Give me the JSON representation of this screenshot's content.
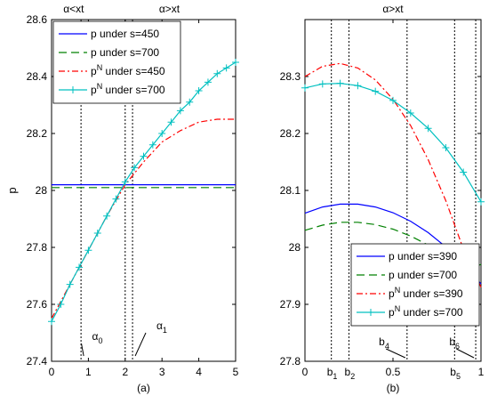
{
  "chart_data": [
    {
      "type": "line",
      "panel_label": "(a)",
      "top_labels": [
        "α<xt",
        "α>xt"
      ],
      "xlabel": "",
      "ylabel": "p",
      "xlim": [
        0,
        5
      ],
      "ylim": [
        27.4,
        28.6
      ],
      "x_ticks": [
        0,
        1,
        2,
        3,
        4,
        5
      ],
      "x_tick_labels": [
        "0",
        "1",
        "2",
        "3",
        "4",
        "5"
      ],
      "y_ticks": [
        27.4,
        27.6,
        27.8,
        28.0,
        28.2,
        28.4,
        28.6
      ],
      "y_tick_labels": [
        "27.4",
        "27.6",
        "27.8",
        "28",
        "28.2",
        "28.4",
        "28.6"
      ],
      "grid": false,
      "legend_position": "top-left",
      "series": [
        {
          "name": "p under s=450",
          "color": "#0000ff",
          "style": "solid",
          "marker": "none",
          "x": [
            0,
            5
          ],
          "y": [
            28.02,
            28.02
          ]
        },
        {
          "name": "p under s=700",
          "color": "#008000",
          "style": "dashed",
          "marker": "none",
          "x": [
            0,
            5
          ],
          "y": [
            28.01,
            28.01
          ]
        },
        {
          "name": "pN under s=450",
          "color": "#ff0000",
          "style": "dashdot",
          "marker": "none",
          "x": [
            0,
            0.5,
            1,
            1.5,
            2,
            2.5,
            3,
            3.5,
            4,
            4.5,
            5
          ],
          "y": [
            27.55,
            27.67,
            27.79,
            27.91,
            28.02,
            28.1,
            28.17,
            28.21,
            28.24,
            28.25,
            28.25
          ]
        },
        {
          "name": "pN under s=700",
          "color": "#00c0c0",
          "style": "solid",
          "marker": "plus",
          "x": [
            0,
            0.25,
            0.5,
            0.75,
            1,
            1.25,
            1.5,
            1.75,
            2,
            2.25,
            2.5,
            2.75,
            3,
            3.25,
            3.5,
            3.75,
            4,
            4.25,
            4.5,
            4.75,
            5
          ],
          "y": [
            27.54,
            27.6,
            27.67,
            27.73,
            27.79,
            27.85,
            27.91,
            27.97,
            28.03,
            28.08,
            28.12,
            28.16,
            28.2,
            28.24,
            28.28,
            28.31,
            28.35,
            28.38,
            28.41,
            28.43,
            28.45
          ]
        }
      ],
      "annotations": [
        {
          "label": "α0",
          "x": 0.8
        },
        {
          "label": "α1",
          "x": 2.2
        }
      ],
      "vertical_lines": [
        0.8,
        2.0,
        2.2
      ]
    },
    {
      "type": "line",
      "panel_label": "(b)",
      "top_labels": [
        "α>xt"
      ],
      "xlabel": "",
      "ylabel": "",
      "xlim": [
        0,
        1
      ],
      "ylim": [
        27.8,
        28.4
      ],
      "x_ticks": [
        0,
        0.5,
        1
      ],
      "x_tick_labels": [
        "0",
        "0.5",
        "1"
      ],
      "y_ticks": [
        27.8,
        27.9,
        28.0,
        28.1,
        28.2,
        28.3
      ],
      "y_tick_labels": [
        "27.8",
        "27.9",
        "28",
        "28.1",
        "28.2",
        "28.3"
      ],
      "grid": false,
      "legend_position": "bottom-right",
      "series": [
        {
          "name": "p under s=390",
          "color": "#0000ff",
          "style": "solid",
          "marker": "none",
          "x": [
            0,
            0.1,
            0.2,
            0.3,
            0.4,
            0.5,
            0.6,
            0.7,
            0.8,
            0.9,
            1.0
          ],
          "y": [
            28.06,
            28.071,
            28.076,
            28.076,
            28.071,
            28.061,
            28.046,
            28.026,
            28.001,
            27.971,
            27.936
          ]
        },
        {
          "name": "p under s=700",
          "color": "#008000",
          "style": "dashed",
          "marker": "none",
          "x": [
            0,
            0.1,
            0.2,
            0.3,
            0.4,
            0.5,
            0.6,
            0.7,
            0.8,
            0.9,
            1.0
          ],
          "y": [
            28.03,
            28.039,
            28.044,
            28.044,
            28.04,
            28.032,
            28.02,
            28.004,
            27.984,
            27.96,
            27.97
          ]
        },
        {
          "name": "pN under s=390",
          "color": "#ff0000",
          "style": "dashdot",
          "marker": "none",
          "x": [
            0,
            0.1,
            0.2,
            0.3,
            0.4,
            0.5,
            0.6,
            0.7,
            0.8,
            0.9,
            1.0
          ],
          "y": [
            28.3,
            28.318,
            28.323,
            28.315,
            28.294,
            28.26,
            28.214,
            28.154,
            28.082,
            27.997,
            27.93
          ]
        },
        {
          "name": "pN under s=700",
          "color": "#00c0c0",
          "style": "solid",
          "marker": "plus",
          "x": [
            0,
            0.1,
            0.2,
            0.3,
            0.4,
            0.5,
            0.6,
            0.7,
            0.8,
            0.9,
            1.0
          ],
          "y": [
            28.28,
            28.287,
            28.288,
            28.284,
            28.274,
            28.258,
            28.236,
            28.209,
            28.175,
            28.132,
            28.08
          ]
        }
      ],
      "annotations": [
        {
          "label": "b1",
          "x": 0.15
        },
        {
          "label": "b2",
          "x": 0.25
        },
        {
          "label": "b4",
          "x": 0.58
        },
        {
          "label": "b5",
          "x": 0.85
        },
        {
          "label": "b6",
          "x": 0.97
        }
      ],
      "vertical_lines": [
        0.15,
        0.25,
        0.58,
        0.85,
        0.97
      ]
    }
  ]
}
